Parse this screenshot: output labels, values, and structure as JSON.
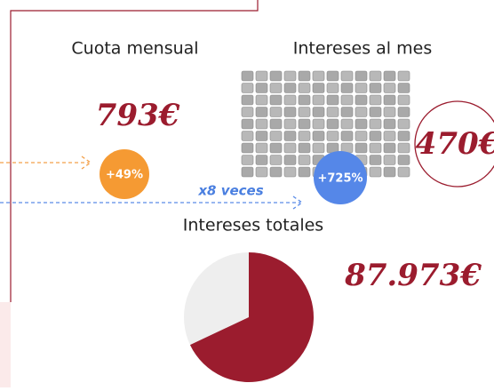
{
  "labels": {
    "cuota_title": "Cuota mensual",
    "intereses_mes_title": "Intereses al mes",
    "intereses_totales_title": "Intereses totales"
  },
  "cuota": {
    "amount": "793€",
    "increase": "+49%"
  },
  "intereses_mes": {
    "amount": "470€",
    "increase": "+725%",
    "multiplier": "x8 veces"
  },
  "intereses_totales": {
    "amount": "87.973€",
    "pie_share": 68
  }
}
